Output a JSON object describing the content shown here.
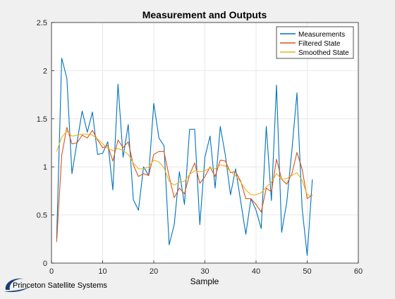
{
  "chart_data": {
    "type": "line",
    "title": "Measurement and Outputs",
    "xlabel": "Sample",
    "ylabel": "",
    "xlim": [
      0,
      60
    ],
    "ylim": [
      0,
      2.5
    ],
    "xticks": [
      0,
      10,
      20,
      30,
      40,
      50,
      60
    ],
    "yticks": [
      0,
      0.5,
      1,
      1.5,
      2,
      2.5
    ],
    "grid": true,
    "legend_position": "top-right",
    "x": [
      1,
      2,
      3,
      4,
      5,
      6,
      7,
      8,
      9,
      10,
      11,
      12,
      13,
      14,
      15,
      16,
      17,
      18,
      19,
      20,
      21,
      22,
      23,
      24,
      25,
      26,
      27,
      28,
      29,
      30,
      31,
      32,
      33,
      34,
      35,
      36,
      37,
      38,
      39,
      40,
      41,
      42,
      43,
      44,
      45,
      46,
      47,
      48,
      49,
      50,
      51
    ],
    "series": [
      {
        "name": "Measurements",
        "color": "#0072bd",
        "values": [
          0.25,
          2.13,
          1.92,
          0.93,
          1.26,
          1.58,
          1.36,
          1.57,
          1.13,
          1.14,
          1.26,
          0.76,
          1.86,
          1.1,
          1.44,
          0.66,
          0.55,
          1.0,
          0.91,
          1.66,
          1.3,
          1.22,
          0.19,
          0.4,
          0.95,
          0.61,
          1.39,
          1.39,
          0.4,
          1.1,
          1.32,
          0.78,
          1.42,
          1.12,
          0.71,
          0.98,
          0.64,
          0.3,
          0.67,
          0.55,
          0.36,
          1.42,
          0.65,
          1.85,
          0.32,
          0.63,
          1.17,
          1.77,
          0.57,
          0.08,
          0.87
        ]
      },
      {
        "name": "Filtered State",
        "color": "#d95319",
        "values": [
          0.22,
          1.12,
          1.41,
          1.24,
          1.25,
          1.33,
          1.3,
          1.38,
          1.28,
          1.2,
          1.22,
          1.06,
          1.28,
          1.2,
          1.26,
          1.02,
          0.9,
          0.93,
          0.91,
          1.13,
          1.16,
          1.16,
          0.9,
          0.68,
          0.78,
          0.72,
          0.92,
          1.04,
          0.83,
          0.9,
          1.0,
          0.9,
          1.07,
          1.06,
          0.94,
          0.95,
          0.85,
          0.67,
          0.67,
          0.61,
          0.53,
          0.78,
          0.74,
          1.08,
          0.87,
          0.82,
          0.93,
          1.15,
          0.98,
          0.67,
          0.71
        ]
      },
      {
        "name": "Smoothed State",
        "color": "#edb120",
        "values": [
          1.16,
          1.31,
          1.37,
          1.32,
          1.33,
          1.34,
          1.34,
          1.33,
          1.29,
          1.24,
          1.19,
          1.17,
          1.19,
          1.17,
          1.13,
          1.04,
          0.98,
          0.98,
          1.0,
          1.07,
          1.05,
          0.99,
          0.85,
          0.81,
          0.84,
          0.85,
          0.92,
          0.96,
          0.95,
          0.96,
          0.99,
          0.98,
          1.02,
          1.01,
          0.95,
          0.91,
          0.84,
          0.76,
          0.71,
          0.71,
          0.73,
          0.79,
          0.84,
          0.93,
          0.87,
          0.88,
          0.91,
          0.94,
          0.86,
          0.71,
          0.7
        ]
      }
    ]
  },
  "branding": {
    "logo_text": "Princeton Satellite Systems"
  }
}
